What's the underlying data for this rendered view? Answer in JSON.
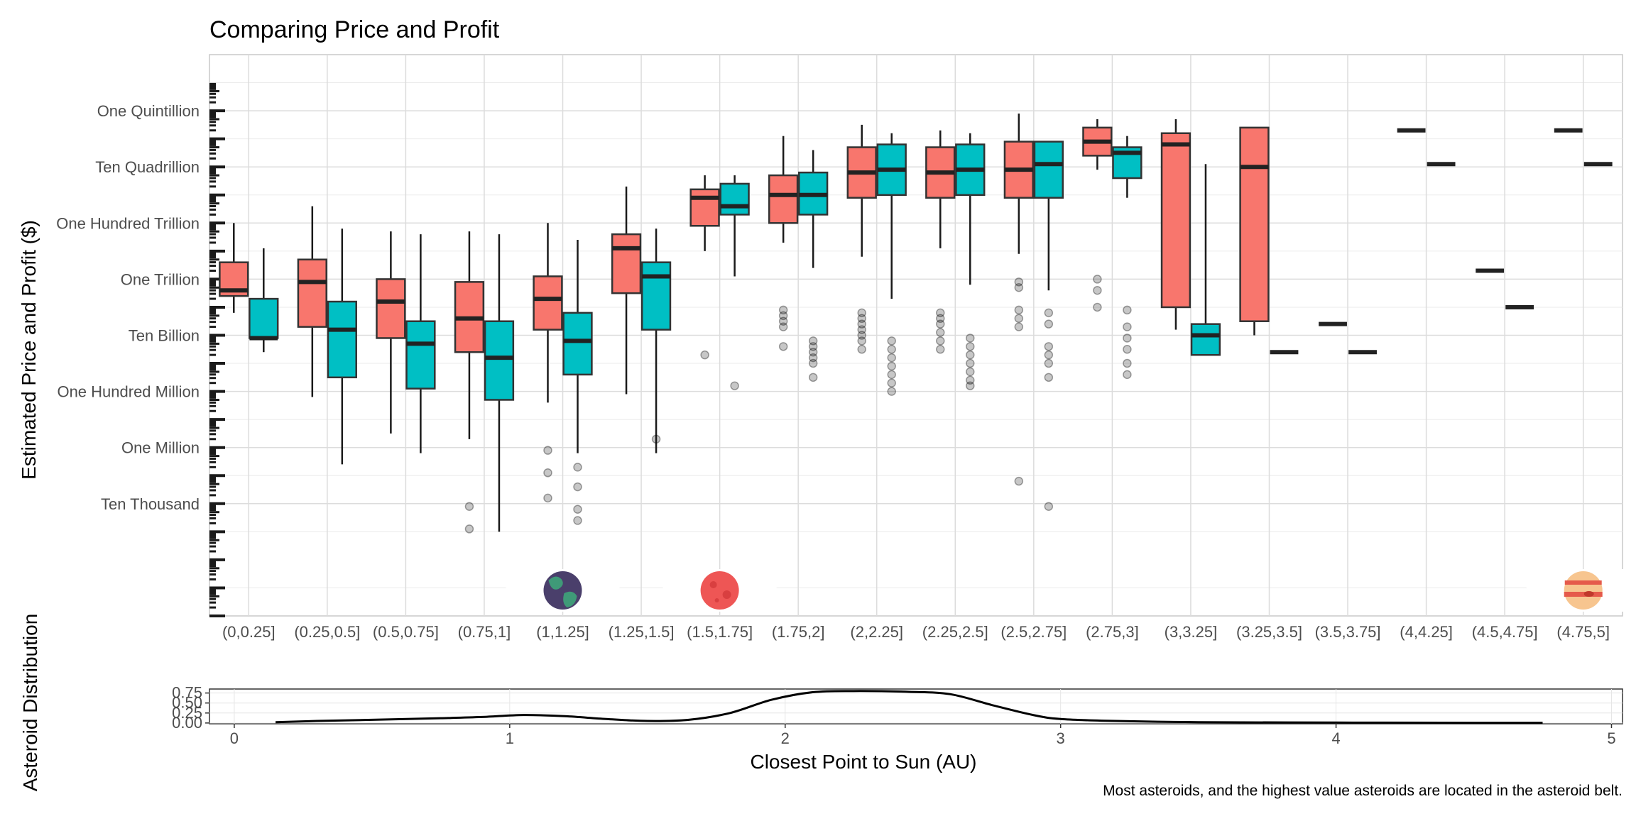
{
  "chart_data": {
    "type": "boxplot",
    "title": "Comparing Price and Profit",
    "ylabel": "Estimated Price and Profit ($)",
    "y_scale": "log10",
    "ylim": [
      1,
      1e+20
    ],
    "y_ticks": [
      {
        "value": 10000,
        "label": "Ten Thousand"
      },
      {
        "value": 1000000,
        "label": "One Million"
      },
      {
        "value": 100000000,
        "label": "One Hundred Million"
      },
      {
        "value": 10000000000,
        "label": "Ten Billion"
      },
      {
        "value": 1000000000000,
        "label": "One Trillion"
      },
      {
        "value": 100000000000000,
        "label": "One Hundred Trillion"
      },
      {
        "value": 10000000000000000,
        "label": "Ten Quadrillion"
      },
      {
        "value": 1000000000000000000,
        "label": "One Quintillion"
      }
    ],
    "categories": [
      "(0,0.25]",
      "(0.25,0.5]",
      "(0.5,0.75]",
      "(0.75,1]",
      "(1,1.25]",
      "(1.25,1.5]",
      "(1.5,1.75]",
      "(1.75,2]",
      "(2,2.25]",
      "(2.25,2.5]",
      "(2.5,2.75]",
      "(2.75,3]",
      "(3,3.25]",
      "(3.25,3.5]",
      "(3.5,3.75]",
      "(4,4.25]",
      "(4.5,4.75]",
      "(4.75,5]"
    ],
    "series": [
      {
        "color": "#F8766D",
        "boxes_log10": [
          [
            10.8,
            11.4,
            11.6,
            12.6,
            14.0
          ],
          [
            7.8,
            10.3,
            11.9,
            12.7,
            14.6
          ],
          [
            6.5,
            9.9,
            11.2,
            12.0,
            13.7
          ],
          [
            6.3,
            9.4,
            10.6,
            11.9,
            13.7
          ],
          [
            7.6,
            10.2,
            11.3,
            12.1,
            14.0
          ],
          [
            7.9,
            11.5,
            13.1,
            13.6,
            15.3
          ],
          [
            13.0,
            13.9,
            14.9,
            15.2,
            15.7
          ],
          [
            13.3,
            14.0,
            15.0,
            15.7,
            17.1
          ],
          [
            12.8,
            14.9,
            15.8,
            16.7,
            17.5
          ],
          [
            13.1,
            14.9,
            15.8,
            16.7,
            17.3
          ],
          [
            12.9,
            14.9,
            15.9,
            16.9,
            17.9
          ],
          [
            15.9,
            16.4,
            16.9,
            17.4,
            17.7
          ],
          [
            10.2,
            11.0,
            16.8,
            17.2,
            17.7
          ],
          [
            10.0,
            10.5,
            16.0,
            17.4,
            17.4
          ],
          [
            10.4,
            10.4,
            10.4,
            10.4,
            10.4
          ],
          [
            17.3,
            17.3,
            17.3,
            17.3,
            17.3
          ],
          [
            12.3,
            12.3,
            12.3,
            12.3,
            12.3
          ],
          [
            17.3,
            17.3,
            17.3,
            17.3,
            17.3
          ]
        ],
        "outliers_log10": [
          [],
          [],
          [],
          [
            3.9,
            3.1
          ],
          [
            5.9,
            5.1,
            4.2
          ],
          [],
          [
            9.3
          ],
          [
            10.3,
            10.5,
            10.7,
            10.9,
            9.6
          ],
          [
            10.8,
            10.6,
            10.4,
            10.2,
            10.0,
            9.8,
            9.5
          ],
          [
            10.8,
            10.6,
            10.4,
            10.1,
            9.8,
            9.5
          ],
          [
            11.9,
            11.7,
            10.9,
            10.6,
            10.3,
            4.8
          ],
          [
            12.0,
            11.6,
            11.0
          ],
          [],
          [],
          [],
          [],
          [],
          []
        ]
      },
      {
        "color": "#00BFC4",
        "boxes_log10": [
          [
            9.4,
            9.9,
            9.9,
            11.3,
            13.1
          ],
          [
            5.4,
            8.5,
            10.2,
            11.2,
            13.8
          ],
          [
            5.8,
            8.1,
            9.7,
            10.5,
            13.6
          ],
          [
            3.0,
            7.7,
            9.2,
            10.5,
            13.6
          ],
          [
            5.8,
            8.6,
            9.8,
            10.8,
            13.4
          ],
          [
            5.8,
            10.2,
            12.1,
            12.6,
            13.8
          ],
          [
            12.1,
            14.3,
            14.6,
            15.4,
            15.7
          ],
          [
            12.4,
            14.3,
            15.0,
            15.8,
            16.6
          ],
          [
            11.3,
            15.0,
            15.9,
            16.8,
            17.2
          ],
          [
            11.8,
            15.0,
            15.9,
            16.8,
            17.2
          ],
          [
            11.6,
            14.9,
            16.1,
            16.9,
            16.9
          ],
          [
            14.9,
            15.6,
            16.5,
            16.7,
            17.1
          ],
          [
            9.3,
            9.3,
            10.0,
            10.4,
            16.1
          ],
          [
            9.4,
            9.4,
            9.4,
            9.4,
            9.4
          ],
          [
            9.4,
            9.4,
            9.4,
            9.4,
            9.4
          ],
          [
            16.1,
            16.1,
            16.1,
            16.1,
            16.1
          ],
          [
            11.0,
            11.0,
            11.0,
            11.0,
            11.0
          ],
          [
            16.1,
            16.1,
            16.1,
            16.1,
            16.1
          ]
        ],
        "outliers_log10": [
          [],
          [],
          [],
          [],
          [
            5.3,
            4.6,
            3.8,
            3.4
          ],
          [
            6.3
          ],
          [
            8.2
          ],
          [
            9.6,
            9.8,
            8.5,
            9.0,
            9.2,
            9.4
          ],
          [
            9.8,
            9.5,
            9.2,
            8.9,
            8.6,
            8.3,
            8.0
          ],
          [
            9.9,
            9.6,
            9.3,
            9.0,
            8.7,
            8.4,
            8.2
          ],
          [
            10.8,
            10.4,
            9.6,
            9.3,
            9.0,
            8.5,
            3.9
          ],
          [
            10.9,
            10.3,
            9.9,
            9.5,
            9.0,
            8.6
          ],
          [],
          [],
          [],
          [],
          [],
          []
        ]
      }
    ],
    "planet_icons": [
      {
        "category": "(1,1.25]",
        "icon": "earth-icon"
      },
      {
        "category": "(1.5,1.75]",
        "icon": "mars-icon"
      },
      {
        "category": "(4.75,5]",
        "icon": "jupiter-icon"
      }
    ],
    "density": {
      "type": "line",
      "ylabel": "Asteroid Distribution",
      "xlabel": "Closest Point to Sun (AU)",
      "xlim": [
        -0.09,
        5.04
      ],
      "ylim": [
        -0.02,
        0.85
      ],
      "x_ticks": [
        0,
        1,
        2,
        3,
        4,
        5
      ],
      "y_ticks": [
        0.0,
        0.25,
        0.5,
        0.75
      ],
      "y_tick_labels": [
        "0.00",
        "0.25",
        "0.50",
        "0.75"
      ],
      "x": [
        0.15,
        0.3,
        0.5,
        0.75,
        0.9,
        1.05,
        1.2,
        1.35,
        1.5,
        1.65,
        1.8,
        1.95,
        2.1,
        2.25,
        2.45,
        2.6,
        2.75,
        2.9,
        3.0,
        3.2,
        3.5,
        4.0,
        4.5,
        4.75
      ],
      "y": [
        0.02,
        0.05,
        0.08,
        0.12,
        0.15,
        0.2,
        0.17,
        0.1,
        0.05,
        0.08,
        0.25,
        0.58,
        0.77,
        0.8,
        0.78,
        0.72,
        0.45,
        0.2,
        0.1,
        0.05,
        0.02,
        0.01,
        0.005,
        0.005
      ]
    },
    "caption": "Most asteroids, and the highest value asteroids are located in the asteroid belt."
  }
}
